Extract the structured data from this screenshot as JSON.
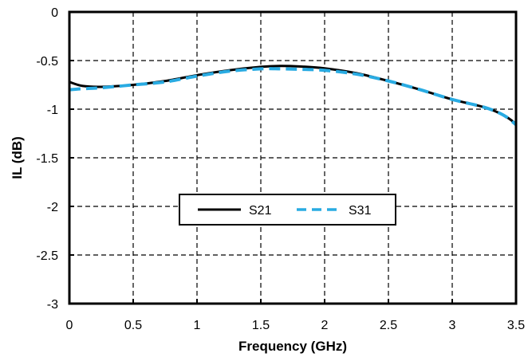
{
  "chart_data": {
    "type": "line",
    "title": "",
    "xlabel": "Frequency (GHz)",
    "ylabel": "IL (dB)",
    "xlim": [
      0,
      3.5
    ],
    "ylim": [
      -3,
      0
    ],
    "x_ticks": [
      0,
      0.5,
      1,
      1.5,
      2,
      2.5,
      3,
      3.5
    ],
    "x_tick_labels": [
      "0",
      "0.5",
      "1",
      "1.5",
      "2",
      "2.5",
      "3",
      "3.5"
    ],
    "y_ticks": [
      0,
      -0.5,
      -1,
      -1.5,
      -2,
      -2.5,
      -3
    ],
    "y_tick_labels": [
      "0",
      "-0.5",
      "-1",
      "-1.5",
      "-2",
      "-2.5",
      "-3"
    ],
    "grid": true,
    "legend_position": "center",
    "series": [
      {
        "name": "S21",
        "color": "#000000",
        "style": "solid",
        "x": [
          0,
          0.1,
          0.25,
          0.5,
          0.75,
          1.0,
          1.25,
          1.5,
          1.65,
          1.8,
          2.0,
          2.25,
          2.5,
          2.75,
          3.0,
          3.25,
          3.4,
          3.5
        ],
        "y": [
          -0.72,
          -0.76,
          -0.77,
          -0.75,
          -0.71,
          -0.65,
          -0.6,
          -0.565,
          -0.555,
          -0.56,
          -0.58,
          -0.63,
          -0.71,
          -0.8,
          -0.9,
          -0.98,
          -1.06,
          -1.15
        ]
      },
      {
        "name": "S31",
        "color": "#29abe2",
        "style": "dashed",
        "x": [
          0,
          0.1,
          0.25,
          0.5,
          0.75,
          1.0,
          1.25,
          1.5,
          1.65,
          1.8,
          2.0,
          2.25,
          2.5,
          2.75,
          3.0,
          3.25,
          3.4,
          3.5
        ],
        "y": [
          -0.8,
          -0.79,
          -0.78,
          -0.75,
          -0.72,
          -0.66,
          -0.61,
          -0.585,
          -0.585,
          -0.59,
          -0.6,
          -0.64,
          -0.71,
          -0.8,
          -0.9,
          -0.98,
          -1.06,
          -1.16
        ]
      }
    ]
  }
}
